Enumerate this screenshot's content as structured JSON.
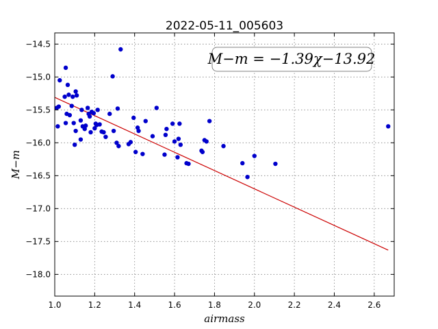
{
  "chart_data": {
    "type": "scatter",
    "title": "2022-05-11_005603",
    "xlabel": "airmass",
    "ylabel": "M−m",
    "xlim": [
      1.0,
      2.7
    ],
    "ylim": [
      -18.33,
      -14.33
    ],
    "y_inverted": true,
    "grid": true,
    "x_ticks": [
      "1.0",
      "1.2",
      "1.4",
      "1.6",
      "1.8",
      "2.0",
      "2.2",
      "2.4",
      "2.6"
    ],
    "y_ticks": [
      "−14.5",
      "−15.0",
      "−15.5",
      "−16.0",
      "−16.5",
      "−17.0",
      "−17.5",
      "−18.0"
    ],
    "annotation": "M−m = −1.39χ−13.92",
    "marker_color": "#0000cc",
    "fit_color": "#cc0000",
    "fit_line": {
      "slope": -1.39,
      "intercept": -13.92,
      "x_range": [
        1.0,
        2.67
      ]
    },
    "points": [
      [
        1.01,
        -15.47
      ],
      [
        1.015,
        -15.75
      ],
      [
        1.02,
        -15.45
      ],
      [
        1.025,
        -15.05
      ],
      [
        1.05,
        -15.3
      ],
      [
        1.055,
        -14.86
      ],
      [
        1.06,
        -15.56
      ],
      [
        1.065,
        -15.12
      ],
      [
        1.055,
        -15.7
      ],
      [
        1.07,
        -15.27
      ],
      [
        1.075,
        -15.58
      ],
      [
        1.085,
        -15.44
      ],
      [
        1.09,
        -15.3
      ],
      [
        1.095,
        -15.7
      ],
      [
        1.1,
        -16.03
      ],
      [
        1.105,
        -15.22
      ],
      [
        1.11,
        -15.28
      ],
      [
        1.105,
        -15.82
      ],
      [
        1.13,
        -15.95
      ],
      [
        1.13,
        -15.66
      ],
      [
        1.135,
        -15.5
      ],
      [
        1.14,
        -15.75
      ],
      [
        1.15,
        -15.79
      ],
      [
        1.155,
        -15.74
      ],
      [
        1.165,
        -15.47
      ],
      [
        1.17,
        -15.56
      ],
      [
        1.175,
        -15.6
      ],
      [
        1.18,
        -15.84
      ],
      [
        1.185,
        -15.53
      ],
      [
        1.195,
        -15.55
      ],
      [
        1.2,
        -15.78
      ],
      [
        1.205,
        -15.71
      ],
      [
        1.21,
        -15.73
      ],
      [
        1.215,
        -15.5
      ],
      [
        1.225,
        -15.72
      ],
      [
        1.235,
        -15.83
      ],
      [
        1.245,
        -15.84
      ],
      [
        1.255,
        -15.91
      ],
      [
        1.275,
        -15.56
      ],
      [
        1.29,
        -14.99
      ],
      [
        1.295,
        -15.82
      ],
      [
        1.31,
        -16.0
      ],
      [
        1.315,
        -15.48
      ],
      [
        1.32,
        -16.05
      ],
      [
        1.33,
        -14.58
      ],
      [
        1.37,
        -16.02
      ],
      [
        1.38,
        -15.99
      ],
      [
        1.395,
        -15.62
      ],
      [
        1.405,
        -16.14
      ],
      [
        1.415,
        -15.77
      ],
      [
        1.42,
        -15.82
      ],
      [
        1.44,
        -16.17
      ],
      [
        1.455,
        -15.67
      ],
      [
        1.49,
        -15.9
      ],
      [
        1.51,
        -15.47
      ],
      [
        1.55,
        -16.18
      ],
      [
        1.555,
        -15.88
      ],
      [
        1.56,
        -15.79
      ],
      [
        1.59,
        -15.71
      ],
      [
        1.6,
        -15.98
      ],
      [
        1.615,
        -16.22
      ],
      [
        1.62,
        -15.94
      ],
      [
        1.625,
        -15.71
      ],
      [
        1.63,
        -16.03
      ],
      [
        1.66,
        -16.31
      ],
      [
        1.67,
        -16.32
      ],
      [
        1.735,
        -16.12
      ],
      [
        1.74,
        -16.14
      ],
      [
        1.75,
        -15.96
      ],
      [
        1.76,
        -15.98
      ],
      [
        1.775,
        -15.67
      ],
      [
        1.845,
        -16.05
      ],
      [
        1.94,
        -16.31
      ],
      [
        1.965,
        -16.52
      ],
      [
        2.0,
        -16.2
      ],
      [
        2.105,
        -16.32
      ],
      [
        2.67,
        -15.75
      ]
    ]
  }
}
